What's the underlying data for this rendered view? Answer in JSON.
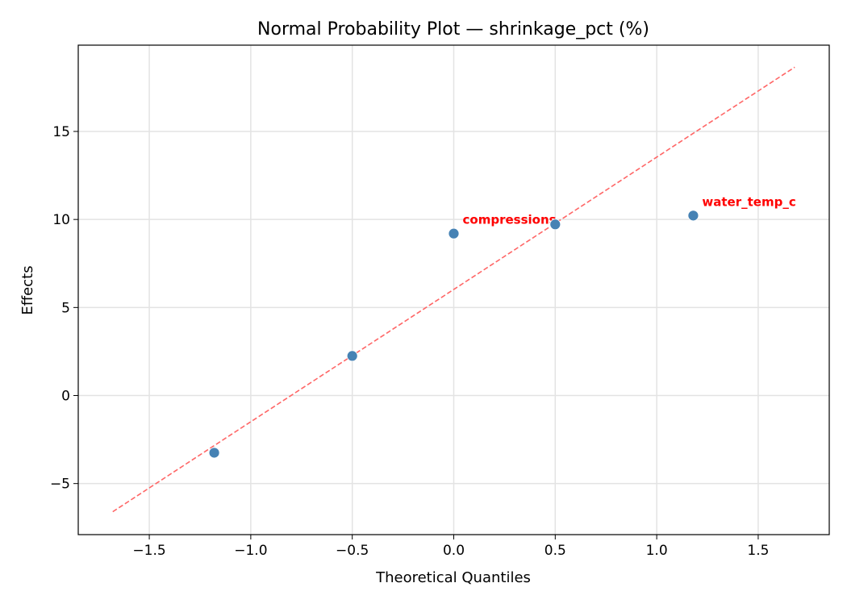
{
  "chart_data": {
    "type": "scatter",
    "title": "Normal Probability Plot — shrinkage_pct (%)",
    "xlabel": "Theoretical Quantiles",
    "ylabel": "Effects",
    "xlim": [
      -1.85,
      1.85
    ],
    "ylim": [
      -7.9,
      19.9
    ],
    "xticks": [
      -1.5,
      -1.0,
      -0.5,
      0.0,
      0.5,
      1.0,
      1.5
    ],
    "xtick_labels": [
      "−1.5",
      "−1.0",
      "−0.5",
      "0.0",
      "0.5",
      "1.0",
      "1.5"
    ],
    "yticks": [
      -5,
      0,
      5,
      10,
      15
    ],
    "ytick_labels": [
      "−5",
      "0",
      "5",
      "10",
      "15"
    ],
    "grid": true,
    "points": [
      {
        "x": -1.18,
        "y": -3.25,
        "label": ""
      },
      {
        "x": -0.5,
        "y": 2.25,
        "label": ""
      },
      {
        "x": 0.0,
        "y": 9.2,
        "label": "compressions"
      },
      {
        "x": 0.5,
        "y": 9.72,
        "label": ""
      },
      {
        "x": 1.18,
        "y": 10.22,
        "label": "water_temp_c"
      }
    ],
    "reference_line": {
      "x": [
        -1.68,
        1.68
      ],
      "y": [
        -6.6,
        18.65
      ],
      "style": "dashed"
    },
    "colors": {
      "points": "#4682b4",
      "line": "#ff6666",
      "labels": "#ff0000"
    }
  }
}
